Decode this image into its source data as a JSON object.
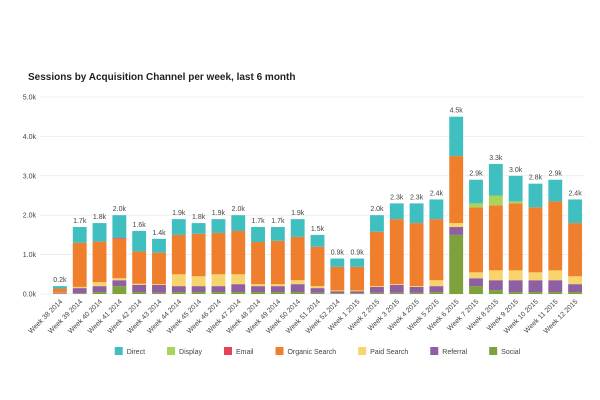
{
  "chart_data": {
    "type": "stacked-bar",
    "title": "Sessions by Acquisition Channel per week, last 6 month",
    "categories": [
      "Week 38 2014",
      "Week 39 2014",
      "Week 40 2014",
      "Week 41 2014",
      "Week 42 2014",
      "Week 43 2014",
      "Week 44 2014",
      "Week 45 2014",
      "Week 46 2014",
      "Week 47 2014",
      "Week 48 2014",
      "Week 49 2014",
      "Week 50 2014",
      "Week 51 2014",
      "Week 52 2014",
      "Week 1 2015",
      "Week 2 2015",
      "Week 3 2015",
      "Week 4 2015",
      "Week 5 2015",
      "Week 6 2015",
      "Week 7 2015",
      "Week 8 2015",
      "Week 9 2015",
      "Week 10 2015",
      "Week 11 2015",
      "Week 12 2015"
    ],
    "total_labels": [
      "0.2k",
      "1.7k",
      "1.8k",
      "2.0k",
      "1.6k",
      "1.4k",
      "1.9k",
      "1.8k",
      "1.9k",
      "2.0k",
      "1.7k",
      "1.7k",
      "1.9k",
      "1.5k",
      "0.9k",
      "0.9k",
      "2.0k",
      "2.3k",
      "2.3k",
      "2.4k",
      "4.5k",
      "2.9k",
      "3.3k",
      "3.0k",
      "2.8k",
      "2.9k",
      "2.4k"
    ],
    "series": [
      {
        "name": "Direct",
        "color": "#40bfc1",
        "values": [
          60,
          400,
          470,
          580,
          520,
          350,
          400,
          270,
          350,
          400,
          380,
          350,
          450,
          300,
          210,
          210,
          420,
          400,
          500,
          500,
          1000,
          600,
          800,
          650,
          600,
          550,
          600
        ]
      },
      {
        "name": "Display",
        "color": "#a8d45a",
        "values": [
          0,
          0,
          0,
          0,
          0,
          0,
          0,
          0,
          0,
          0,
          0,
          0,
          0,
          0,
          0,
          0,
          0,
          0,
          0,
          0,
          0,
          100,
          250,
          50,
          0,
          0,
          0
        ]
      },
      {
        "name": "Email",
        "color": "#e8405a",
        "values": [
          0,
          0,
          0,
          20,
          0,
          0,
          0,
          0,
          0,
          0,
          0,
          0,
          0,
          0,
          0,
          0,
          0,
          0,
          0,
          0,
          0,
          0,
          0,
          0,
          0,
          0,
          0
        ]
      },
      {
        "name": "Organic Search",
        "color": "#f07f2d",
        "values": [
          110,
          1120,
          1030,
          1000,
          820,
          800,
          1000,
          1080,
          1050,
          1100,
          1070,
          1100,
          1100,
          1000,
          600,
          600,
          1380,
          1650,
          1600,
          1550,
          1700,
          1650,
          1650,
          1700,
          1650,
          1750,
          1350
        ]
      },
      {
        "name": "Paid Search",
        "color": "#f8d46c",
        "values": [
          10,
          30,
          100,
          50,
          30,
          20,
          300,
          250,
          300,
          250,
          50,
          50,
          100,
          50,
          20,
          20,
          20,
          20,
          20,
          150,
          100,
          150,
          250,
          250,
          200,
          250,
          200
        ]
      },
      {
        "name": "Referral",
        "color": "#8f5fa3",
        "values": [
          20,
          130,
          150,
          150,
          180,
          200,
          150,
          150,
          150,
          200,
          150,
          150,
          200,
          120,
          50,
          50,
          150,
          200,
          150,
          150,
          200,
          200,
          250,
          300,
          300,
          300,
          200
        ]
      },
      {
        "name": "Social",
        "color": "#7ea23b",
        "values": [
          0,
          20,
          50,
          200,
          50,
          30,
          50,
          50,
          50,
          50,
          50,
          50,
          50,
          30,
          20,
          20,
          30,
          30,
          30,
          50,
          1500,
          200,
          100,
          50,
          50,
          50,
          50
        ]
      }
    ],
    "ylim": [
      0,
      5000
    ],
    "yticks": [
      {
        "value": 0,
        "label": "0.0k"
      },
      {
        "value": 1000,
        "label": "1.0k"
      },
      {
        "value": 2000,
        "label": "2.0k"
      },
      {
        "value": 3000,
        "label": "3.0k"
      },
      {
        "value": 4000,
        "label": "4.0k"
      },
      {
        "value": 5000,
        "label": "5.0k"
      }
    ],
    "grid": true
  }
}
